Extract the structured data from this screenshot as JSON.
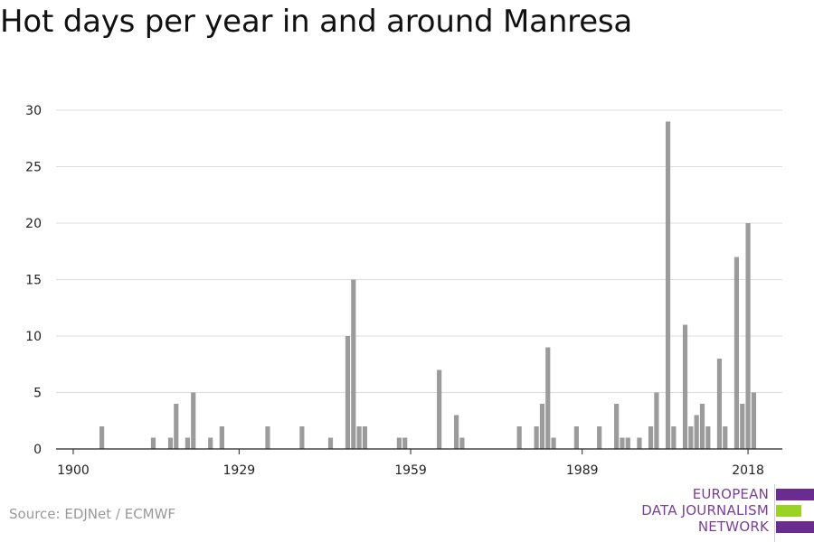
{
  "page": {
    "title": "Hot days per year in and around Manresa",
    "source": "Source: EDJNet / ECMWF"
  },
  "logo": {
    "line1": "EUROPEAN",
    "line2": "DATA JOURNALISM",
    "line3": "NETWORK",
    "purple": "#6a2c91",
    "green": "#9bd226"
  },
  "chart_data": {
    "type": "bar",
    "title": "Hot days per year in and around Manresa",
    "xlabel": "",
    "ylabel": "",
    "xlim": [
      1897,
      2024
    ],
    "ylim": [
      0,
      30
    ],
    "x_ticks": [
      1900,
      1929,
      1959,
      1989,
      2018
    ],
    "y_ticks": [
      0,
      5,
      10,
      15,
      20,
      25,
      30
    ],
    "grid": true,
    "bar_color": "#9b9b9b",
    "x": [
      1900,
      1901,
      1902,
      1903,
      1904,
      1905,
      1906,
      1907,
      1908,
      1909,
      1910,
      1911,
      1912,
      1913,
      1914,
      1915,
      1916,
      1917,
      1918,
      1919,
      1920,
      1921,
      1922,
      1923,
      1924,
      1925,
      1926,
      1927,
      1928,
      1929,
      1930,
      1931,
      1932,
      1933,
      1934,
      1935,
      1936,
      1937,
      1938,
      1939,
      1940,
      1941,
      1942,
      1943,
      1944,
      1945,
      1946,
      1947,
      1948,
      1949,
      1950,
      1951,
      1952,
      1953,
      1954,
      1955,
      1956,
      1957,
      1958,
      1959,
      1960,
      1961,
      1962,
      1963,
      1964,
      1965,
      1966,
      1967,
      1968,
      1969,
      1970,
      1971,
      1972,
      1973,
      1974,
      1975,
      1976,
      1977,
      1978,
      1979,
      1980,
      1981,
      1982,
      1983,
      1984,
      1985,
      1986,
      1987,
      1988,
      1989,
      1990,
      1991,
      1992,
      1993,
      1994,
      1995,
      1996,
      1997,
      1998,
      1999,
      2000,
      2001,
      2002,
      2003,
      2004,
      2005,
      2006,
      2007,
      2008,
      2009,
      2010,
      2011,
      2012,
      2013,
      2014,
      2015,
      2016,
      2017,
      2018,
      2019
    ],
    "values": [
      0,
      0,
      0,
      0,
      0,
      2,
      0,
      0,
      0,
      0,
      0,
      0,
      0,
      0,
      1,
      0,
      0,
      1,
      4,
      0,
      1,
      5,
      0,
      0,
      1,
      0,
      2,
      0,
      0,
      0,
      0,
      0,
      0,
      0,
      2,
      0,
      0,
      0,
      0,
      0,
      2,
      0,
      0,
      0,
      0,
      1,
      0,
      0,
      10,
      15,
      2,
      2,
      0,
      0,
      0,
      0,
      0,
      1,
      1,
      0,
      0,
      0,
      0,
      0,
      7,
      0,
      0,
      3,
      1,
      0,
      0,
      0,
      0,
      0,
      0,
      0,
      0,
      0,
      2,
      0,
      0,
      2,
      4,
      9,
      1,
      0,
      0,
      0,
      2,
      0,
      0,
      0,
      2,
      0,
      0,
      4,
      1,
      1,
      0,
      1,
      0,
      2,
      5,
      0,
      29,
      2,
      0,
      11,
      2,
      3,
      4,
      2,
      0,
      8,
      2,
      0,
      17,
      4,
      20,
      5
    ]
  }
}
